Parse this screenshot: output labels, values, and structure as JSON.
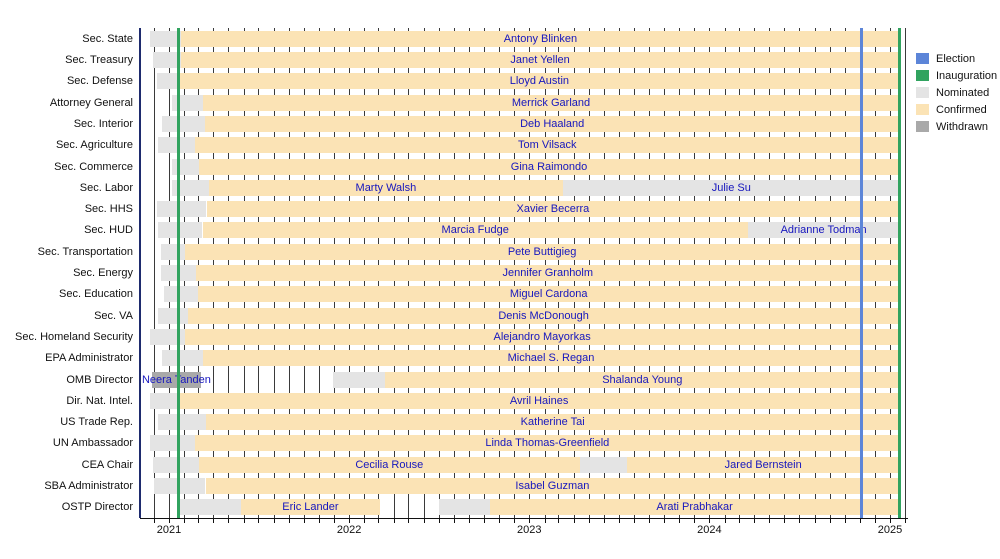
{
  "legend": {
    "items": [
      {
        "name": "election",
        "label": "Election",
        "color": "#5c85d8"
      },
      {
        "name": "inauguration",
        "label": "Inauguration",
        "color": "#31a35f"
      },
      {
        "name": "nominated",
        "label": "Nominated",
        "color": "#e4e4e4"
      },
      {
        "name": "confirmed",
        "label": "Confirmed",
        "color": "#fbe3b5"
      },
      {
        "name": "withdrawn",
        "label": "Withdrawn",
        "color": "#a9a9a9"
      }
    ]
  },
  "axis": {
    "year_labels": [
      "2021",
      "2022",
      "2023",
      "2024",
      "2025"
    ]
  },
  "chart_data": {
    "type": "timeline",
    "title": "",
    "x_range": [
      "2020-11-01",
      "2025-02-01"
    ],
    "grid": "monthly",
    "legend_position": "right",
    "status_colors": {
      "nominated": "#e4e4e4",
      "confirmed": "#fbe3b5",
      "withdrawn": "#a9a9a9"
    },
    "label_color": "#1616be",
    "event_lines": [
      {
        "name": "election-2020",
        "date": "2020-11-03",
        "color": "#1e2b6e",
        "width": 2.5
      },
      {
        "name": "inauguration-2021",
        "date": "2021-01-20",
        "color": "#31a35f",
        "width": 3
      },
      {
        "name": "election-2024",
        "date": "2024-11-05",
        "color": "#5c85d8",
        "width": 3
      },
      {
        "name": "inauguration-2025",
        "date": "2025-01-20",
        "color": "#31a35f",
        "width": 3
      }
    ],
    "rows": [
      {
        "position": "Sec. State",
        "segments": [
          {
            "status": "nominated",
            "start": "2020-11-23",
            "end": "2021-01-26"
          },
          {
            "status": "confirmed",
            "start": "2021-01-26",
            "end": "2025-01-20",
            "label": "Antony Blinken"
          }
        ]
      },
      {
        "position": "Sec. Treasury",
        "segments": [
          {
            "status": "nominated",
            "start": "2020-11-30",
            "end": "2021-01-25"
          },
          {
            "status": "confirmed",
            "start": "2021-01-25",
            "end": "2025-01-20",
            "label": "Janet Yellen"
          }
        ]
      },
      {
        "position": "Sec. Defense",
        "segments": [
          {
            "status": "nominated",
            "start": "2020-12-08",
            "end": "2021-01-22"
          },
          {
            "status": "confirmed",
            "start": "2021-01-22",
            "end": "2025-01-20",
            "label": "Lloyd Austin"
          }
        ]
      },
      {
        "position": "Attorney General",
        "segments": [
          {
            "status": "nominated",
            "start": "2021-01-07",
            "end": "2021-03-10"
          },
          {
            "status": "confirmed",
            "start": "2021-03-10",
            "end": "2025-01-20",
            "label": "Merrick Garland"
          }
        ]
      },
      {
        "position": "Sec. Interior",
        "segments": [
          {
            "status": "nominated",
            "start": "2020-12-17",
            "end": "2021-03-15"
          },
          {
            "status": "confirmed",
            "start": "2021-03-15",
            "end": "2025-01-20",
            "label": "Deb Haaland"
          }
        ]
      },
      {
        "position": "Sec. Agriculture",
        "segments": [
          {
            "status": "nominated",
            "start": "2020-12-10",
            "end": "2021-02-23"
          },
          {
            "status": "confirmed",
            "start": "2021-02-23",
            "end": "2025-01-20",
            "label": "Tom Vilsack"
          }
        ]
      },
      {
        "position": "Sec. Commerce",
        "segments": [
          {
            "status": "nominated",
            "start": "2021-01-07",
            "end": "2021-03-02"
          },
          {
            "status": "confirmed",
            "start": "2021-03-02",
            "end": "2025-01-20",
            "label": "Gina Raimondo"
          }
        ]
      },
      {
        "position": "Sec. Labor",
        "segments": [
          {
            "status": "nominated",
            "start": "2021-01-07",
            "end": "2021-03-22"
          },
          {
            "status": "confirmed",
            "start": "2021-03-22",
            "end": "2023-03-11",
            "label": "Marty Walsh"
          },
          {
            "status": "nominated",
            "start": "2023-03-11",
            "end": "2025-01-20",
            "label": "Julie Su"
          }
        ]
      },
      {
        "position": "Sec. HHS",
        "segments": [
          {
            "status": "nominated",
            "start": "2020-12-07",
            "end": "2021-03-18"
          },
          {
            "status": "confirmed",
            "start": "2021-03-18",
            "end": "2025-01-20",
            "label": "Xavier Becerra"
          }
        ]
      },
      {
        "position": "Sec. HUD",
        "segments": [
          {
            "status": "nominated",
            "start": "2020-12-10",
            "end": "2021-03-10"
          },
          {
            "status": "confirmed",
            "start": "2021-03-10",
            "end": "2024-03-19",
            "label": "Marcia Fudge"
          },
          {
            "status": "nominated",
            "start": "2024-03-19",
            "end": "2025-01-20",
            "label": "Adrianne Todman"
          }
        ]
      },
      {
        "position": "Sec. Transportation",
        "segments": [
          {
            "status": "nominated",
            "start": "2020-12-15",
            "end": "2021-02-02"
          },
          {
            "status": "confirmed",
            "start": "2021-02-02",
            "end": "2025-01-20",
            "label": "Pete Buttigieg"
          }
        ]
      },
      {
        "position": "Sec. Energy",
        "segments": [
          {
            "status": "nominated",
            "start": "2020-12-15",
            "end": "2021-02-25"
          },
          {
            "status": "confirmed",
            "start": "2021-02-25",
            "end": "2025-01-20",
            "label": "Jennifer Granholm"
          }
        ]
      },
      {
        "position": "Sec. Education",
        "segments": [
          {
            "status": "nominated",
            "start": "2020-12-22",
            "end": "2021-03-01"
          },
          {
            "status": "confirmed",
            "start": "2021-03-01",
            "end": "2025-01-20",
            "label": "Miguel Cardona"
          }
        ]
      },
      {
        "position": "Sec. VA",
        "segments": [
          {
            "status": "nominated",
            "start": "2020-12-10",
            "end": "2021-02-08"
          },
          {
            "status": "confirmed",
            "start": "2021-02-08",
            "end": "2025-01-20",
            "label": "Denis McDonough"
          }
        ]
      },
      {
        "position": "Sec. Homeland Security",
        "segments": [
          {
            "status": "nominated",
            "start": "2020-11-23",
            "end": "2021-02-02"
          },
          {
            "status": "confirmed",
            "start": "2021-02-02",
            "end": "2025-01-20",
            "label": "Alejandro Mayorkas"
          }
        ]
      },
      {
        "position": "EPA Administrator",
        "segments": [
          {
            "status": "nominated",
            "start": "2020-12-17",
            "end": "2021-03-10"
          },
          {
            "status": "confirmed",
            "start": "2021-03-10",
            "end": "2025-01-20",
            "label": "Michael S. Regan"
          }
        ]
      },
      {
        "position": "OMB Director",
        "segments": [
          {
            "status": "withdrawn",
            "start": "2020-11-28",
            "end": "2021-03-06",
            "label": "Neera Tanden"
          },
          {
            "status": "nominated",
            "start": "2021-11-29",
            "end": "2022-03-15"
          },
          {
            "status": "confirmed",
            "start": "2022-03-15",
            "end": "2025-01-20",
            "label": "Shalanda Young"
          }
        ]
      },
      {
        "position": "Dir. Nat. Intel.",
        "segments": [
          {
            "status": "nominated",
            "start": "2020-11-23",
            "end": "2021-01-21"
          },
          {
            "status": "confirmed",
            "start": "2021-01-21",
            "end": "2025-01-20",
            "label": "Avril Haines"
          }
        ]
      },
      {
        "position": "US Trade Rep.",
        "segments": [
          {
            "status": "nominated",
            "start": "2020-12-10",
            "end": "2021-03-17"
          },
          {
            "status": "confirmed",
            "start": "2021-03-17",
            "end": "2025-01-20",
            "label": "Katherine Tai"
          }
        ]
      },
      {
        "position": "UN Ambassador",
        "segments": [
          {
            "status": "nominated",
            "start": "2020-11-23",
            "end": "2021-02-23"
          },
          {
            "status": "confirmed",
            "start": "2021-02-23",
            "end": "2025-01-20",
            "label": "Linda Thomas-Greenfield"
          }
        ]
      },
      {
        "position": "CEA Chair",
        "segments": [
          {
            "status": "nominated",
            "start": "2020-11-30",
            "end": "2021-03-02"
          },
          {
            "status": "confirmed",
            "start": "2021-03-02",
            "end": "2023-04-14",
            "label": "Cecilia Rouse"
          },
          {
            "status": "nominated",
            "start": "2023-04-14",
            "end": "2023-07-18"
          },
          {
            "status": "confirmed",
            "start": "2023-07-18",
            "end": "2025-01-20",
            "label": "Jared Bernstein"
          }
        ]
      },
      {
        "position": "SBA Administrator",
        "segments": [
          {
            "status": "nominated",
            "start": "2020-12-02",
            "end": "2021-03-16"
          },
          {
            "status": "confirmed",
            "start": "2021-03-16",
            "end": "2025-01-20",
            "label": "Isabel Guzman"
          }
        ]
      },
      {
        "position": "OSTP Director",
        "segments": [
          {
            "status": "nominated",
            "start": "2021-01-24",
            "end": "2021-05-26"
          },
          {
            "status": "confirmed",
            "start": "2021-05-26",
            "end": "2022-03-05",
            "label": "Eric Lander"
          },
          {
            "status": "nominated",
            "start": "2022-07-03",
            "end": "2022-10-13"
          },
          {
            "status": "confirmed",
            "start": "2022-10-13",
            "end": "2025-01-20",
            "label": "Arati Prabhakar"
          }
        ]
      }
    ]
  }
}
